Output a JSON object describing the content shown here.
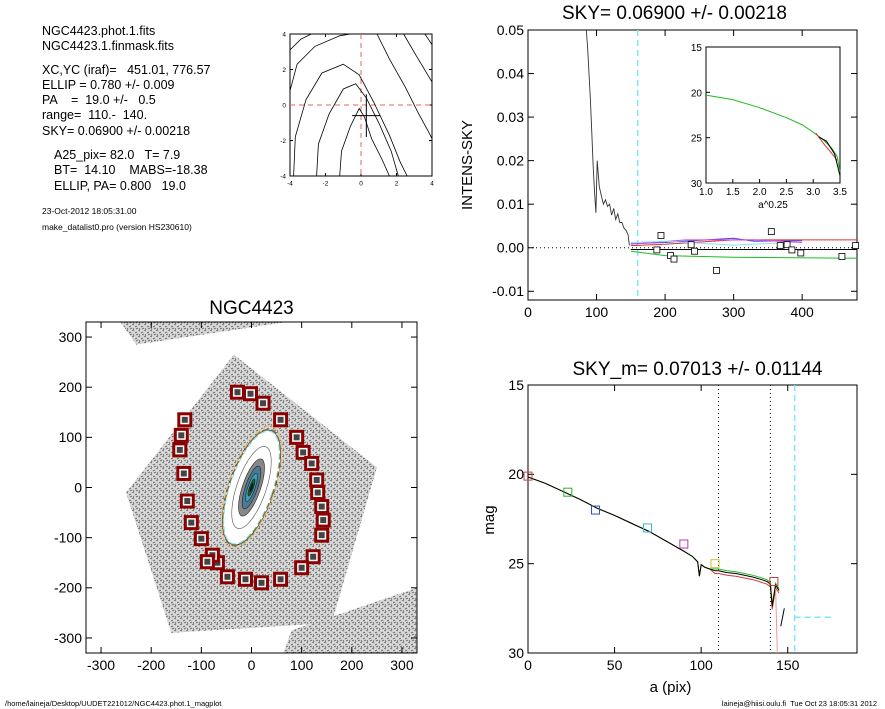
{
  "header": {
    "file_lines": [
      "NGC4423.phot.1.fits",
      "NGC4423.1.finmask.fits"
    ],
    "param_lines": [
      "XC,YC (iraf)=   451.01, 776.57",
      "ELLIP = 0.780 +/- 0.009",
      "PA    =  19.0 +/-   0.5",
      "range=  110.-  140.",
      "SKY= 0.06900 +/- 0.00218"
    ],
    "extra_lines": [
      "A25_pix= 82.0   T= 7.9",
      "BT=  14.10    MABS=-18.38",
      "ELLIP, PA= 0.800   19.0"
    ],
    "date_line": "23-Oct-2012 18:05:31.00",
    "program_line": "make_datalist0.pro (version HS230610)"
  },
  "footer": {
    "path": "/home/laineja/Desktop/UUDET221012/NGC4423.phot.1_magplot",
    "user_time": "laineja@hiisi.oulu.fi  Tue Oct 23 18:05:31 2012"
  },
  "chart_data": [
    {
      "id": "contour",
      "type": "line",
      "title": "",
      "xlim": [
        -4,
        4
      ],
      "ylim": [
        -4,
        4
      ],
      "xticks": [
        "-4",
        "-2",
        "0",
        "2",
        "4"
      ],
      "yticks": [
        "-4",
        "-2",
        "0",
        "2",
        "4"
      ],
      "contours": [
        [
          [
            -4,
            3.1
          ],
          [
            -3.4,
            3.7
          ],
          [
            -2.8,
            4
          ]
        ],
        [
          [
            -4,
            0.8
          ],
          [
            -3.6,
            2.3
          ],
          [
            -2.6,
            3.3
          ],
          [
            -1.2,
            3.9
          ],
          [
            -0.6,
            4
          ]
        ],
        [
          [
            -3.8,
            -4
          ],
          [
            -3.7,
            -1.8
          ],
          [
            -3.1,
            0.3
          ],
          [
            -2.2,
            1.8
          ],
          [
            -1,
            2.3
          ],
          [
            -0.1,
            1.7
          ],
          [
            0.7,
            0.2
          ],
          [
            1.6,
            -1.7
          ],
          [
            2.2,
            -3.2
          ],
          [
            2.6,
            -4
          ]
        ],
        [
          [
            -2.5,
            -4
          ],
          [
            -2.4,
            -2.2
          ],
          [
            -1.8,
            -0.5
          ],
          [
            -1,
            0.9
          ],
          [
            -0.3,
            1.2
          ],
          [
            0.3,
            0.4
          ],
          [
            1,
            -1
          ],
          [
            1.7,
            -2.6
          ],
          [
            2.1,
            -4
          ]
        ],
        [
          [
            -1.2,
            -4
          ],
          [
            -1.1,
            -2.6
          ],
          [
            -0.6,
            -1.2
          ],
          [
            -0.1,
            -0.2
          ],
          [
            0.2,
            -0.7
          ],
          [
            0.6,
            -1.9
          ],
          [
            1.2,
            -3.1
          ],
          [
            1.6,
            -4
          ]
        ],
        [
          [
            0.9,
            4
          ],
          [
            1.6,
            2.6
          ],
          [
            2.5,
            1
          ],
          [
            3.2,
            -0.4
          ],
          [
            3.8,
            -1.5
          ],
          [
            4,
            -1.9
          ]
        ],
        [
          [
            2.4,
            4
          ],
          [
            3.1,
            2.8
          ],
          [
            4,
            1.3
          ]
        ],
        [
          [
            3.6,
            4
          ],
          [
            4,
            3.4
          ]
        ]
      ]
    },
    {
      "id": "intens",
      "type": "line",
      "title": "SKY= 0.06900 +/- 0.00218",
      "xlabel": "",
      "ylabel": "INTENS-SKY",
      "xlim": [
        0,
        480
      ],
      "ylim": [
        -0.012,
        0.05
      ],
      "xticks": [
        "0",
        "100",
        "200",
        "300",
        "400"
      ],
      "yticks": [
        "-0.01",
        "0.00",
        "0.01",
        "0.02",
        "0.03",
        "0.04",
        "0.05"
      ],
      "profile_x": [
        85,
        87,
        89,
        91,
        93,
        95,
        97,
        99,
        101,
        104,
        107,
        110,
        113,
        116,
        119,
        122,
        125,
        128,
        131,
        134,
        137,
        140,
        143,
        146,
        148
      ],
      "profile_y": [
        0.05,
        0.046,
        0.04,
        0.034,
        0.027,
        0.019,
        0.013,
        0.008,
        0.02,
        0.014,
        0.012,
        0.01,
        0.011,
        0.0095,
        0.01,
        0.0075,
        0.009,
        0.0065,
        0.0078,
        0.0058,
        0.0058,
        0.0045,
        0.004,
        0.003,
        0.0005
      ],
      "sky_line_x": 160,
      "squares_x": [
        188,
        194,
        208,
        213,
        238,
        243,
        275,
        355,
        368,
        378,
        385,
        398,
        458,
        478
      ],
      "squares_y": [
        -0.0005,
        0.0028,
        -0.0018,
        -0.0026,
        0.0007,
        -0.0008,
        -0.0052,
        0.0037,
        0.0005,
        0.0007,
        -0.0005,
        -0.0012,
        -0.002,
        0.0005
      ],
      "inset": {
        "xlabel": "a^0.25",
        "xlim": [
          1.0,
          3.5
        ],
        "ylim": [
          15,
          30
        ],
        "xticks": [
          "1.0",
          "1.5",
          "2.0",
          "2.5",
          "3.0",
          "3.5"
        ],
        "yticks": [
          "15",
          "20",
          "25",
          "30"
        ],
        "x": [
          1.0,
          1.5,
          2.0,
          2.5,
          2.8,
          3.0,
          3.2,
          3.35,
          3.45,
          3.5
        ],
        "y": [
          20.3,
          20.8,
          21.7,
          22.8,
          23.6,
          24.4,
          25.3,
          26.2,
          27.1,
          28.8
        ]
      }
    },
    {
      "id": "image",
      "type": "scatter",
      "title": "NGC4423",
      "xlim": [
        -330,
        330
      ],
      "ylim": [
        -330,
        330
      ],
      "xticks": [
        "-300",
        "-200",
        "-100",
        "0",
        "100",
        "200",
        "300"
      ],
      "yticks": [
        "-300",
        "-200",
        "-100",
        "0",
        "100",
        "200",
        "300"
      ],
      "markers_x": [
        -28,
        -2,
        23,
        58,
        90,
        103,
        120,
        130,
        132,
        140,
        143,
        140,
        123,
        100,
        58,
        20,
        -12,
        -48,
        -68,
        -78,
        -88,
        -100,
        -120,
        -128,
        -135,
        -143,
        -140,
        -133
      ],
      "markers_y": [
        190,
        187,
        168,
        135,
        100,
        70,
        48,
        15,
        -10,
        -38,
        -65,
        -95,
        -138,
        -160,
        -183,
        -190,
        -183,
        -178,
        -150,
        -135,
        -148,
        -102,
        -70,
        -27,
        28,
        75,
        104,
        135
      ]
    },
    {
      "id": "mag",
      "type": "line",
      "title": "SKY_m=  0.07013 +/- 0.01144",
      "xlabel": "a (pix)",
      "ylabel": "mag",
      "xlim": [
        0,
        190
      ],
      "ylim": [
        15,
        30
      ],
      "xticks": [
        "0",
        "50",
        "100",
        "150"
      ],
      "yticks": [
        "15",
        "20",
        "25",
        "30"
      ],
      "profile_x": [
        0,
        10,
        20,
        30,
        40,
        50,
        60,
        70,
        80,
        90,
        95,
        98,
        99,
        100,
        102,
        105,
        108,
        110,
        115,
        120,
        125,
        130,
        135,
        138,
        140,
        141,
        143,
        145
      ],
      "profile_y": [
        20.15,
        20.5,
        20.95,
        21.4,
        21.9,
        22.3,
        22.75,
        23.2,
        23.75,
        24.3,
        24.6,
        24.9,
        25.7,
        25.05,
        25.2,
        25.3,
        25.4,
        25.4,
        25.5,
        25.55,
        25.65,
        25.75,
        25.9,
        26.0,
        26.15,
        27.4,
        26.2,
        26.5
      ],
      "markers_x": [
        0,
        23,
        39,
        69,
        90,
        108,
        142
      ],
      "markers_y": [
        20.1,
        21.0,
        22.0,
        23.0,
        23.9,
        25.0,
        26.0
      ],
      "marker_colors": [
        "#d04040",
        "#30b030",
        "#3050c0",
        "#30c0d0",
        "#c030c0",
        "#d0c030",
        "#c04040"
      ],
      "vlines_dotted": [
        110,
        140
      ],
      "sky_line_x": 154,
      "sky_level": 28.0
    }
  ],
  "colors": {
    "axis": "#000000",
    "cyan_dashed": "#7fe6f5",
    "red_dashed": "#e06464",
    "marker_red": "#8b0000",
    "green": "#22bb22",
    "red": "#dd3333",
    "blue": "#4444dd",
    "magenta": "#dd44dd"
  }
}
